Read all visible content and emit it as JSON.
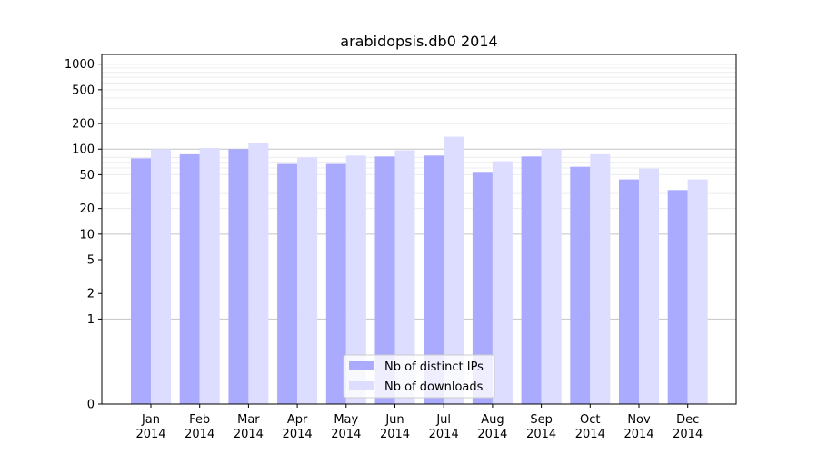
{
  "chart_data": {
    "type": "bar",
    "title": "arabidopsis.db0 2014",
    "xlabel": "",
    "ylabel": "",
    "yscale": "symlog",
    "ylim": [
      0,
      1300
    ],
    "yticks": [
      0,
      1,
      2,
      5,
      10,
      20,
      50,
      100,
      200,
      500,
      1000
    ],
    "grid": "horizontal",
    "legend_position": "bottom-center",
    "categories": [
      [
        "Jan",
        "2014"
      ],
      [
        "Feb",
        "2014"
      ],
      [
        "Mar",
        "2014"
      ],
      [
        "Apr",
        "2014"
      ],
      [
        "May",
        "2014"
      ],
      [
        "Jun",
        "2014"
      ],
      [
        "Jul",
        "2014"
      ],
      [
        "Aug",
        "2014"
      ],
      [
        "Sep",
        "2014"
      ],
      [
        "Oct",
        "2014"
      ],
      [
        "Nov",
        "2014"
      ],
      [
        "Dec",
        "2014"
      ]
    ],
    "series": [
      {
        "name": "Nb of distinct IPs",
        "color": "#aaaaff",
        "values": [
          78,
          87,
          100,
          67,
          67,
          82,
          84,
          54,
          82,
          62,
          44,
          33
        ]
      },
      {
        "name": "Nb of downloads",
        "color": "#ddddff",
        "values": [
          100,
          103,
          118,
          80,
          84,
          97,
          140,
          72,
          100,
          87,
          59,
          44
        ]
      }
    ]
  }
}
